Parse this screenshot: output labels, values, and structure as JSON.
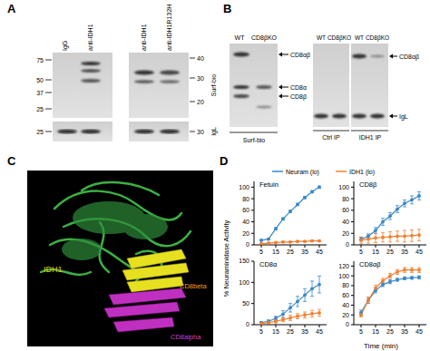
{
  "panel_labels": [
    "A",
    "B",
    "C",
    "D"
  ],
  "panel_a": {
    "left_blot": {
      "lanes": [
        "IgG",
        "anti-IDH1"
      ],
      "markers_top": [
        75,
        50,
        37,
        25
      ],
      "markers_bottom": [
        25
      ]
    },
    "right_blot": {
      "lanes": [
        "anti-IDH1",
        "anti-IDH1R132H"
      ],
      "markers_top": [
        40,
        30,
        20
      ],
      "markers_bottom": [
        30
      ]
    },
    "row_labels": [
      "Surf-bio",
      "IgL"
    ]
  },
  "panel_b": {
    "left_blot": {
      "lanes": [
        "WT",
        "CD8βKO"
      ],
      "bands": [
        "CD8αβ",
        "CD8α",
        "CD8β"
      ],
      "caption": "Surf-bio"
    },
    "right_blot": {
      "lanes": [
        "WT",
        "CD8βKO",
        "WT",
        "CD8βKO"
      ],
      "bands": [
        "CD8αβ",
        "IgL"
      ],
      "captions": [
        "Ctrl IP",
        "IDH1 IP"
      ]
    }
  },
  "panel_c": {
    "labels": [
      "IDH1",
      "CD8beta",
      "CD8alpha"
    ]
  },
  "panel_d": {
    "y_label": "% Neuraminidase Activity",
    "x_label": "Time (min)"
  },
  "chart_data": [
    {
      "type": "line",
      "title": "Fetuin",
      "x": [
        5,
        10,
        15,
        20,
        25,
        30,
        35,
        40,
        45
      ],
      "xlim": [
        0,
        50
      ],
      "xticks": [
        5,
        15,
        25,
        35,
        45
      ],
      "ylim": [
        0,
        110
      ],
      "yticks": [
        0,
        20,
        40,
        60,
        80,
        100
      ],
      "grid": false,
      "series": [
        {
          "name": "Neuram (lo)",
          "color": "#3a88c8",
          "marker": "circle",
          "values": [
            8,
            10,
            28,
            45,
            58,
            70,
            82,
            92,
            100
          ],
          "errors": [
            1,
            1,
            2,
            2,
            2,
            2,
            2,
            2,
            2
          ]
        },
        {
          "name": "IDH1 (lo)",
          "color": "#f08030",
          "marker": "circle",
          "values": [
            2,
            3,
            4,
            5,
            5,
            6,
            6,
            7,
            7
          ],
          "errors": [
            1,
            1,
            1,
            1,
            1,
            1,
            1,
            1,
            1
          ]
        }
      ]
    },
    {
      "type": "line",
      "title": "CD8β",
      "x": [
        5,
        10,
        15,
        20,
        25,
        30,
        35,
        40,
        45
      ],
      "xlim": [
        0,
        50
      ],
      "xticks": [
        5,
        15,
        25,
        35,
        45
      ],
      "ylim": [
        0,
        110
      ],
      "yticks": [
        0,
        20,
        40,
        60,
        80,
        100
      ],
      "grid": false,
      "series": [
        {
          "name": "Neuram (lo)",
          "color": "#3a88c8",
          "marker": "circle",
          "values": [
            10,
            15,
            25,
            40,
            50,
            62,
            72,
            78,
            85
          ],
          "errors": [
            3,
            4,
            5,
            6,
            6,
            6,
            6,
            7,
            7
          ]
        },
        {
          "name": "IDH1 (lo)",
          "color": "#f08030",
          "marker": "circle",
          "values": [
            8,
            10,
            12,
            13,
            14,
            15,
            15,
            16,
            17
          ],
          "errors": [
            6,
            7,
            8,
            8,
            9,
            9,
            10,
            10,
            10
          ]
        }
      ]
    },
    {
      "type": "line",
      "title": "CD8α",
      "x": [
        5,
        10,
        15,
        20,
        25,
        30,
        35,
        40,
        45
      ],
      "xlim": [
        0,
        50
      ],
      "xticks": [
        5,
        15,
        25,
        35,
        45
      ],
      "ylim": [
        0,
        150
      ],
      "yticks": [
        0,
        50,
        100,
        150
      ],
      "grid": false,
      "series": [
        {
          "name": "Neuram (lo)",
          "color": "#3a88c8",
          "marker": "circle",
          "values": [
            5,
            8,
            15,
            25,
            40,
            55,
            70,
            85,
            95
          ],
          "errors": [
            2,
            3,
            5,
            8,
            10,
            12,
            15,
            18,
            20
          ]
        },
        {
          "name": "IDH1 (lo)",
          "color": "#f08030",
          "marker": "circle",
          "values": [
            3,
            5,
            8,
            12,
            16,
            20,
            23,
            26,
            28
          ],
          "errors": [
            2,
            3,
            4,
            5,
            6,
            6,
            7,
            8,
            8
          ]
        }
      ]
    },
    {
      "type": "line",
      "title": "CD8αβ",
      "x": [
        5,
        10,
        15,
        20,
        25,
        30,
        35,
        40,
        45
      ],
      "xlim": [
        0,
        50
      ],
      "xticks": [
        5,
        15,
        25,
        35,
        45
      ],
      "ylim": [
        0,
        130
      ],
      "yticks": [
        0,
        20,
        40,
        60,
        80,
        100,
        120
      ],
      "grid": false,
      "series": [
        {
          "name": "Neuram (lo)",
          "color": "#3a88c8",
          "marker": "circle",
          "values": [
            25,
            50,
            70,
            82,
            88,
            92,
            95,
            96,
            97
          ],
          "errors": [
            5,
            6,
            5,
            4,
            4,
            3,
            3,
            3,
            3
          ]
        },
        {
          "name": "IDH1 (lo)",
          "color": "#f08030",
          "marker": "circle",
          "values": [
            20,
            50,
            75,
            90,
            100,
            108,
            112,
            112,
            112
          ],
          "errors": [
            4,
            6,
            6,
            5,
            5,
            5,
            5,
            5,
            5
          ]
        }
      ]
    }
  ]
}
